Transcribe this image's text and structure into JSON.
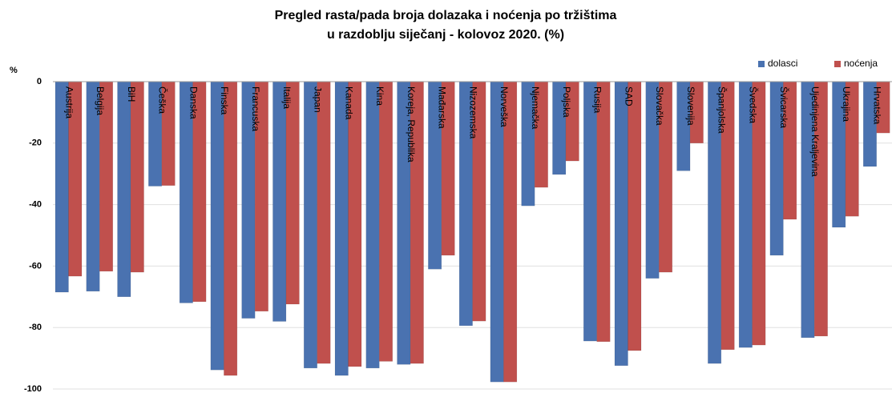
{
  "chart_data": {
    "type": "bar",
    "title": [
      "Pregled rasta/pada broja dolazaka i noćenja po tržištima",
      "u razdoblju siječanj - kolovoz 2020. (%)"
    ],
    "y_axis_label": "%",
    "categories": [
      "Austrija",
      "Belgija",
      "BiH",
      "Češka",
      "Danska",
      "Finska",
      "Francuska",
      "Italija",
      "Japan",
      "Kanada",
      "Kina",
      "Koreja, Republika",
      "Mađarska",
      "Nizozemska",
      "Norveška",
      "Njemačka",
      "Poljska",
      "Rusija",
      "SAD",
      "Slovačka",
      "Slovenija",
      "Španjolska",
      "Švedska",
      "Švicarska",
      "Ujedinjena Kraljevina",
      "Ukrajina",
      "Hrvatska"
    ],
    "series": [
      {
        "name": "dolasci",
        "color": "#4a72b0",
        "values": [
          -68.5,
          -68.2,
          -70,
          -34,
          -72,
          -93.8,
          -77,
          -78,
          -93.2,
          -95.6,
          -93.2,
          -92,
          -61,
          -79.4,
          -97.7,
          -40.4,
          -30.2,
          -84.4,
          -92.4,
          -64,
          -29,
          -91.7,
          -86.5,
          -56.5,
          -83.3,
          -47.4,
          -27.6
        ]
      },
      {
        "name": "noćenja",
        "color": "#c0504d",
        "values": [
          -63.3,
          -61.7,
          -62,
          -33.8,
          -71.6,
          -95.6,
          -74.7,
          -72.4,
          -91.7,
          -92.7,
          -91,
          -91.7,
          -56.5,
          -77.9,
          -97.7,
          -34.4,
          -25.8,
          -84.6,
          -87.5,
          -62,
          -20,
          -87.2,
          -85.7,
          -44.8,
          -82.8,
          -43.8,
          -16.7
        ]
      }
    ],
    "ylim": [
      -100,
      0
    ],
    "yticks": [
      0,
      -20,
      -40,
      -60,
      -80,
      -100
    ],
    "grid": true,
    "legend": "top-right"
  }
}
